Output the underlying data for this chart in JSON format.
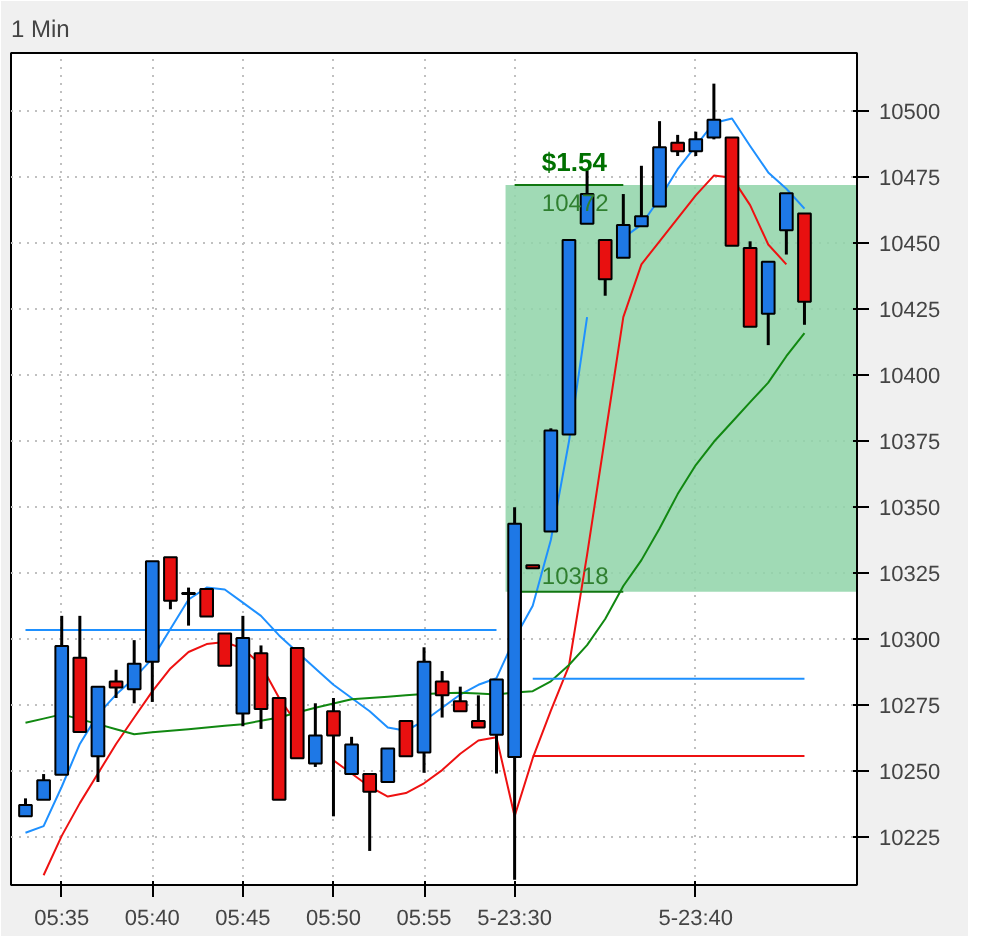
{
  "chart_data": {
    "type": "candlestick",
    "title": "1 Min",
    "categories": [
      null,
      null,
      "05:35",
      null,
      null,
      null,
      null,
      "05:40",
      null,
      null,
      null,
      null,
      "05:45",
      null,
      null,
      null,
      null,
      "05:50",
      null,
      null,
      null,
      null,
      "05:55",
      null,
      null,
      null,
      null,
      "5-23:30",
      null,
      null,
      null,
      null,
      null,
      null,
      null,
      null,
      null,
      "5-23:40",
      null,
      null,
      null,
      null,
      null,
      null
    ],
    "ohlc": [
      [
        10233,
        10239.8,
        10233,
        10237.3
      ],
      [
        10239.3,
        10249,
        10239.3,
        10246.7
      ],
      [
        10248.7,
        10308.9,
        10248.7,
        10297.5
      ],
      [
        10293,
        10308.9,
        10264.9,
        10264.9
      ],
      [
        10255.7,
        10282.1,
        10246,
        10282.1
      ],
      [
        10284,
        10288.5,
        10277.8,
        10281.8
      ],
      [
        10281.1,
        10299.7,
        10275.8,
        10290.8
      ],
      [
        10291.5,
        10329.6,
        10276.3,
        10329.6
      ],
      [
        10331.1,
        10331.1,
        10311.4,
        10314.6
      ],
      [
        10317.6,
        10319.6,
        10305.2,
        10317.2
      ],
      [
        10319.1,
        10319.1,
        10308.7,
        10308.7
      ],
      [
        10302.2,
        10302.2,
        10290,
        10290
      ],
      [
        10271.9,
        10308.9,
        10267.1,
        10300.5
      ],
      [
        10294.7,
        10297.7,
        10266.1,
        10273.6
      ],
      [
        10277.8,
        10277.8,
        10239.3,
        10239.3
      ],
      [
        10296.7,
        10296.7,
        10255,
        10255
      ],
      [
        10253,
        10275.8,
        10251.7,
        10263.6
      ],
      [
        10272.8,
        10277.8,
        10233,
        10263.6
      ],
      [
        10249,
        10263.1,
        10249,
        10260.2
      ],
      [
        10249,
        10249,
        10219.9,
        10242.3
      ],
      [
        10246,
        10258.7,
        10246,
        10258.7
      ],
      [
        10269.1,
        10269.1,
        10255.7,
        10255.7
      ],
      [
        10257.2,
        10297,
        10249.5,
        10291.5
      ],
      [
        10284,
        10288,
        10270.4,
        10278.8
      ],
      [
        10276.6,
        10282.1,
        10272.8,
        10272.8
      ],
      [
        10269.1,
        10278.8,
        10266.6,
        10266.6
      ],
      [
        10263.9,
        10284.8,
        10249.2,
        10284.8
      ],
      [
        10255.5,
        10350,
        10209,
        10343.8
      ],
      [
        10328.1,
        10328.1,
        10326.9,
        10326.9
      ],
      [
        10340.8,
        10379.9,
        10340.8,
        10379.1
      ],
      [
        10377.6,
        10451.2,
        10377.6,
        10451.2
      ],
      [
        10457.4,
        10477.6,
        10457.4,
        10468.6
      ],
      [
        10451.2,
        10451.2,
        10430.1,
        10436.3
      ],
      [
        10444.5,
        10468.6,
        10444.5,
        10456.9
      ],
      [
        10456.4,
        10479.3,
        10456.4,
        10460.2
      ],
      [
        10463.9,
        10496.2,
        10463.9,
        10486.3
      ],
      [
        10488,
        10491,
        10483,
        10484.8
      ],
      [
        10484.8,
        10492.2,
        10483,
        10489.3
      ],
      [
        10490,
        10510.4,
        10489.3,
        10496.7
      ],
      [
        10490,
        10490,
        10449,
        10449
      ],
      [
        10448.2,
        10450.7,
        10418.4,
        10418.4
      ],
      [
        10423.3,
        10443,
        10411.4,
        10443
      ],
      [
        10454.9,
        10468.9,
        10445.7,
        10468.9
      ],
      [
        10461.2,
        10461.2,
        10419.1,
        10427.8
      ]
    ],
    "colors": [
      "#1e78e6",
      "#1e78e6",
      "#1e78e6",
      "#e81010",
      "#1e78e6",
      "#e81010",
      "#1e78e6",
      "#1e78e6",
      "#e81010",
      "#000000",
      "#e81010",
      "#e81010",
      "#1e78e6",
      "#e81010",
      "#e81010",
      "#e81010",
      "#1e78e6",
      "#e81010",
      "#1e78e6",
      "#e81010",
      "#1e78e6",
      "#e81010",
      "#1e78e6",
      "#e81010",
      "#e81010",
      "#e81010",
      "#1e78e6",
      "#1e78e6",
      "#e81010",
      "#1e78e6",
      "#1e78e6",
      "#1e78e6",
      "#e81010",
      "#1e78e6",
      "#1e78e6",
      "#1e78e6",
      "#e81010",
      "#1e78e6",
      "#1e78e6",
      "#e81010",
      "#e81010",
      "#1e78e6",
      "#1e78e6",
      "#e81010"
    ],
    "series": [
      {
        "type": "line",
        "color": "#1e90ff",
        "values": [
          10226.8,
          10229.3,
          10244.2,
          10260.4,
          10271.6,
          10279.1,
          10285.3,
          10292.7,
          10303.9,
          10315.1,
          10319.6,
          10318.9,
          10313.9,
          10308.9,
          10301.5,
          10295.2,
          10289.0,
          10282.8,
          10277.8,
          10272.8,
          10266.6,
          10265.4,
          10269.1,
          10274.1,
          10279.1,
          10282.8,
          10285.3,
          10300.3,
          10312.7,
          10337.6,
          10374.9,
          10422,
          null,
          10452,
          10457,
          10466.9,
          10478,
          10486.8,
          10495.5,
          10497.2,
          10486.8,
          10476.8,
          10470.6,
          10463.1
        ]
      },
      {
        "type": "line",
        "color": "#ee1111",
        "values": [
          null,
          10210.7,
          10225.6,
          10238,
          10249.2,
          10260.4,
          10270.4,
          10280.3,
          10289,
          10295.2,
          10298.2,
          10299,
          10296.5,
          10290.3,
          10277.8,
          10267.9,
          null,
          10254.2,
          10249.2,
          10244.2,
          10240.5,
          10241.8,
          10245.5,
          10250.5,
          10256.7,
          10261.7,
          10262.9,
          10233,
          10255,
          10273,
          10290,
          10332,
          10377,
          10422,
          10442,
          10450.7,
          10459.4,
          10468.1,
          10475.6,
          10474.8,
          10464.4,
          10449.5,
          10442,
          null
        ]
      },
      {
        "type": "line",
        "color": "#118811",
        "values": [
          10268.4,
          10270,
          10271.6,
          10269.8,
          10267.9,
          10266,
          10264.1,
          10264.8,
          10265.4,
          10266,
          10266.6,
          10267.3,
          10267.9,
          10269.2,
          10270.4,
          10272.3,
          10274.1,
          10275.7,
          10277.3,
          10277.8,
          10278.3,
          10278.8,
          10279.3,
          10279.6,
          10279.8,
          10279.5,
          10279.1,
          10279.9,
          10280.4,
          10284.1,
          10290.3,
          10297.8,
          10307.7,
          10320.2,
          10330,
          10342,
          10355,
          10366,
          10374.8,
          10382.3,
          10389.8,
          10397.2,
          10407.2,
          10415.9
        ]
      },
      {
        "type": "line",
        "color": "#1e90ff",
        "values": [
          10303.5,
          10303.5,
          10303.5,
          10303.5,
          10303.5,
          10303.5,
          10303.5,
          10303.5,
          10303.5,
          10303.5,
          10303.5,
          10303.5,
          10303.5,
          10303.5,
          10303.5,
          10303.5,
          10303.5,
          10303.5,
          10303.5,
          10303.5,
          10303.5,
          10303.5,
          10303.5,
          10303.5,
          10303.5,
          10303.5,
          10303.5,
          null,
          null,
          null,
          null,
          null,
          null,
          null,
          null,
          null,
          null,
          null,
          null,
          null,
          null,
          null,
          null,
          null
        ]
      },
      {
        "type": "line",
        "color": "#1e90ff",
        "values": [
          null,
          null,
          null,
          null,
          null,
          null,
          null,
          null,
          null,
          null,
          null,
          null,
          null,
          null,
          null,
          null,
          null,
          null,
          null,
          null,
          null,
          null,
          null,
          null,
          null,
          null,
          null,
          null,
          10285.1,
          10285.1,
          10285.1,
          10285.1,
          10285.1,
          10285.1,
          10285.1,
          10285.1,
          10285.1,
          10285.1,
          10285.1,
          10285.1,
          10285.1,
          10285.1,
          10285.1,
          10285.1
        ]
      },
      {
        "type": "line",
        "color": "#ee1111",
        "values": [
          null,
          null,
          null,
          null,
          null,
          null,
          null,
          null,
          null,
          null,
          null,
          null,
          null,
          null,
          null,
          null,
          null,
          null,
          null,
          null,
          null,
          null,
          null,
          null,
          null,
          null,
          null,
          null,
          10255.8,
          10255.8,
          10255.8,
          10255.8,
          10255.8,
          10255.8,
          10255.8,
          10255.8,
          10255.8,
          10255.8,
          10255.8,
          10255.8,
          10255.8,
          10255.8,
          10255.8,
          10255.8
        ]
      },
      {
        "type": "line",
        "color": "#117711",
        "values": [
          null,
          null,
          null,
          null,
          null,
          null,
          null,
          null,
          null,
          null,
          null,
          null,
          null,
          null,
          null,
          null,
          null,
          null,
          null,
          null,
          null,
          null,
          null,
          null,
          null,
          null,
          null,
          10318,
          10318,
          10318,
          10318,
          10318,
          10318,
          10318,
          null,
          null,
          null,
          null,
          null,
          null,
          null,
          null,
          null,
          null
        ]
      },
      {
        "type": "line",
        "color": "#117711",
        "values": [
          null,
          null,
          null,
          null,
          null,
          null,
          null,
          null,
          null,
          null,
          null,
          null,
          null,
          null,
          null,
          null,
          null,
          null,
          null,
          null,
          null,
          null,
          null,
          null,
          null,
          null,
          null,
          10472,
          10472,
          10472,
          10472,
          10472,
          10472,
          10472,
          null,
          null,
          null,
          null,
          null,
          null,
          null,
          null,
          null,
          null
        ]
      }
    ],
    "bands": [
      {
        "axis": "y",
        "from": 10318,
        "to": 10472,
        "color": "#8fd4a8"
      }
    ],
    "annotations": [
      "$1.54",
      {
        "text": "10472",
        "y": 10472
      },
      {
        "text": "10318",
        "y": 10318
      }
    ],
    "ylim": [
      10207,
      10522
    ],
    "yticks": [
      10225,
      10250,
      10275,
      10300,
      10325,
      10350,
      10375,
      10400,
      10425,
      10450,
      10475,
      10500
    ],
    "grid": true
  }
}
